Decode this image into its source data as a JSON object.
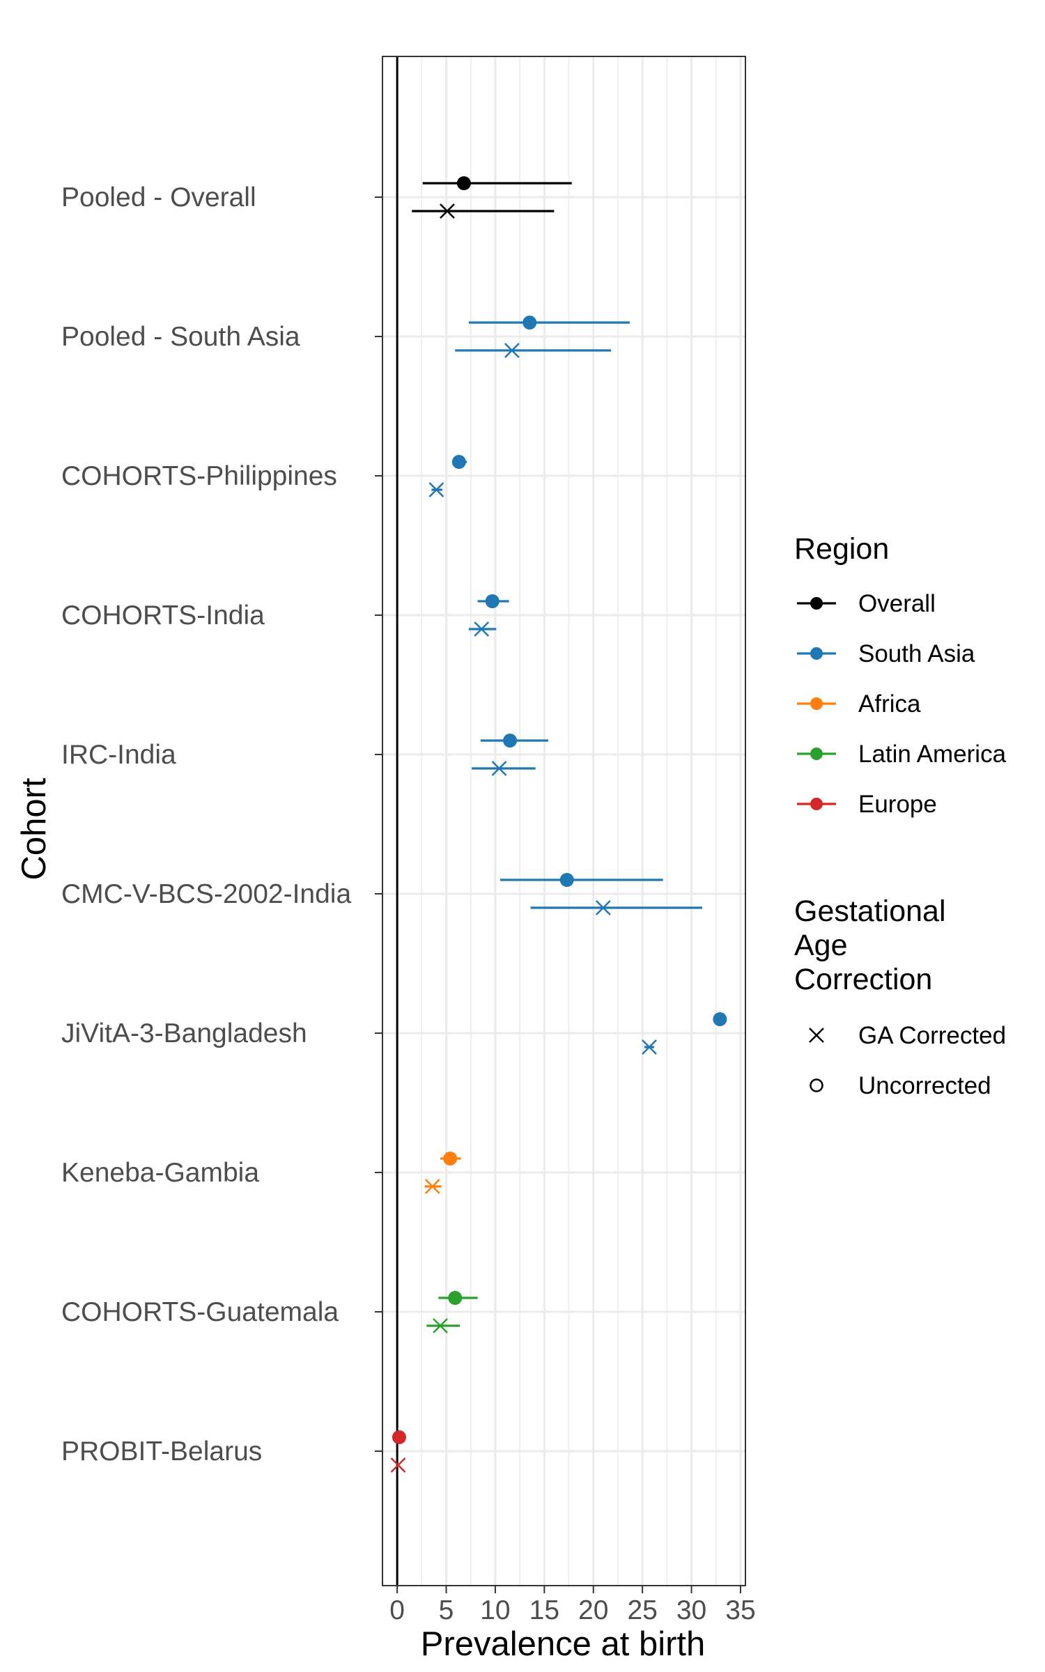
{
  "chart_data": {
    "type": "scatter",
    "subtype": "forest-plot",
    "title": "",
    "xlabel": "Prevalence at birth",
    "ylabel": "Cohort",
    "xlim": [
      -1.5,
      35.5
    ],
    "x_ticks": [
      0,
      5,
      10,
      15,
      20,
      25,
      30,
      35
    ],
    "x_tick_labels": [
      "0",
      "5",
      "10",
      "15",
      "20",
      "25",
      "30",
      "35"
    ],
    "reference_line_x": 0,
    "grid": true,
    "legend_position": "right",
    "categories": [
      "Pooled - Overall",
      "Pooled - South Asia",
      "COHORTS-Philippines",
      "COHORTS-India",
      "IRC-India",
      "CMC-V-BCS-2002-India",
      "JiVitA-3-Bangladesh",
      "Keneba-Gambia",
      "COHORTS-Guatemala",
      "PROBIT-Belarus"
    ],
    "region_legend": {
      "title": "Region",
      "entries": [
        {
          "label": "Overall",
          "color": "#000000"
        },
        {
          "label": "South Asia",
          "color": "#1f77b4"
        },
        {
          "label": "Africa",
          "color": "#ff7f0e"
        },
        {
          "label": "Latin America",
          "color": "#2ca02c"
        },
        {
          "label": "Europe",
          "color": "#d62728"
        }
      ]
    },
    "correction_legend": {
      "title_lines": [
        "Gestational",
        "Age",
        "Correction"
      ],
      "entries": [
        {
          "label": "GA Corrected",
          "shape": "cross"
        },
        {
          "label": "Uncorrected",
          "shape": "circle"
        }
      ]
    },
    "series": [
      {
        "name": "Uncorrected",
        "shape": "circle",
        "points": [
          {
            "cohort": "Pooled - Overall",
            "region": "Overall",
            "estimate": 6.8,
            "lower": 2.6,
            "upper": 17.8
          },
          {
            "cohort": "Pooled - South Asia",
            "region": "South Asia",
            "estimate": 13.5,
            "lower": 7.3,
            "upper": 23.7
          },
          {
            "cohort": "COHORTS-Philippines",
            "region": "South Asia",
            "estimate": 6.3,
            "lower": 5.6,
            "upper": 7.1
          },
          {
            "cohort": "COHORTS-India",
            "region": "South Asia",
            "estimate": 9.7,
            "lower": 8.2,
            "upper": 11.4
          },
          {
            "cohort": "IRC-India",
            "region": "South Asia",
            "estimate": 11.5,
            "lower": 8.5,
            "upper": 15.4
          },
          {
            "cohort": "CMC-V-BCS-2002-India",
            "region": "South Asia",
            "estimate": 17.3,
            "lower": 10.5,
            "upper": 27.1
          },
          {
            "cohort": "JiVitA-3-Bangladesh",
            "region": "South Asia",
            "estimate": 32.9,
            "lower": 32.4,
            "upper": 33.4
          },
          {
            "cohort": "Keneba-Gambia",
            "region": "Africa",
            "estimate": 5.4,
            "lower": 4.4,
            "upper": 6.5
          },
          {
            "cohort": "COHORTS-Guatemala",
            "region": "Latin America",
            "estimate": 5.9,
            "lower": 4.2,
            "upper": 8.2
          },
          {
            "cohort": "PROBIT-Belarus",
            "region": "Europe",
            "estimate": 0.2,
            "lower": 0.1,
            "upper": 0.3
          }
        ]
      },
      {
        "name": "GA Corrected",
        "shape": "cross",
        "points": [
          {
            "cohort": "Pooled - Overall",
            "region": "Overall",
            "estimate": 5.1,
            "lower": 1.5,
            "upper": 16.0
          },
          {
            "cohort": "Pooled - South Asia",
            "region": "South Asia",
            "estimate": 11.7,
            "lower": 5.9,
            "upper": 21.8
          },
          {
            "cohort": "COHORTS-Philippines",
            "region": "South Asia",
            "estimate": 4.0,
            "lower": 3.5,
            "upper": 4.6
          },
          {
            "cohort": "COHORTS-India",
            "region": "South Asia",
            "estimate": 8.6,
            "lower": 7.3,
            "upper": 10.1
          },
          {
            "cohort": "IRC-India",
            "region": "South Asia",
            "estimate": 10.4,
            "lower": 7.6,
            "upper": 14.1
          },
          {
            "cohort": "CMC-V-BCS-2002-India",
            "region": "South Asia",
            "estimate": 21.0,
            "lower": 13.6,
            "upper": 31.1
          },
          {
            "cohort": "JiVitA-3-Bangladesh",
            "region": "South Asia",
            "estimate": 25.7,
            "lower": 25.2,
            "upper": 26.2
          },
          {
            "cohort": "Keneba-Gambia",
            "region": "Africa",
            "estimate": 3.6,
            "lower": 2.8,
            "upper": 4.5
          },
          {
            "cohort": "COHORTS-Guatemala",
            "region": "Latin America",
            "estimate": 4.4,
            "lower": 3.0,
            "upper": 6.4
          },
          {
            "cohort": "PROBIT-Belarus",
            "region": "Europe",
            "estimate": 0.1,
            "lower": 0.0,
            "upper": 0.2
          }
        ]
      }
    ]
  }
}
